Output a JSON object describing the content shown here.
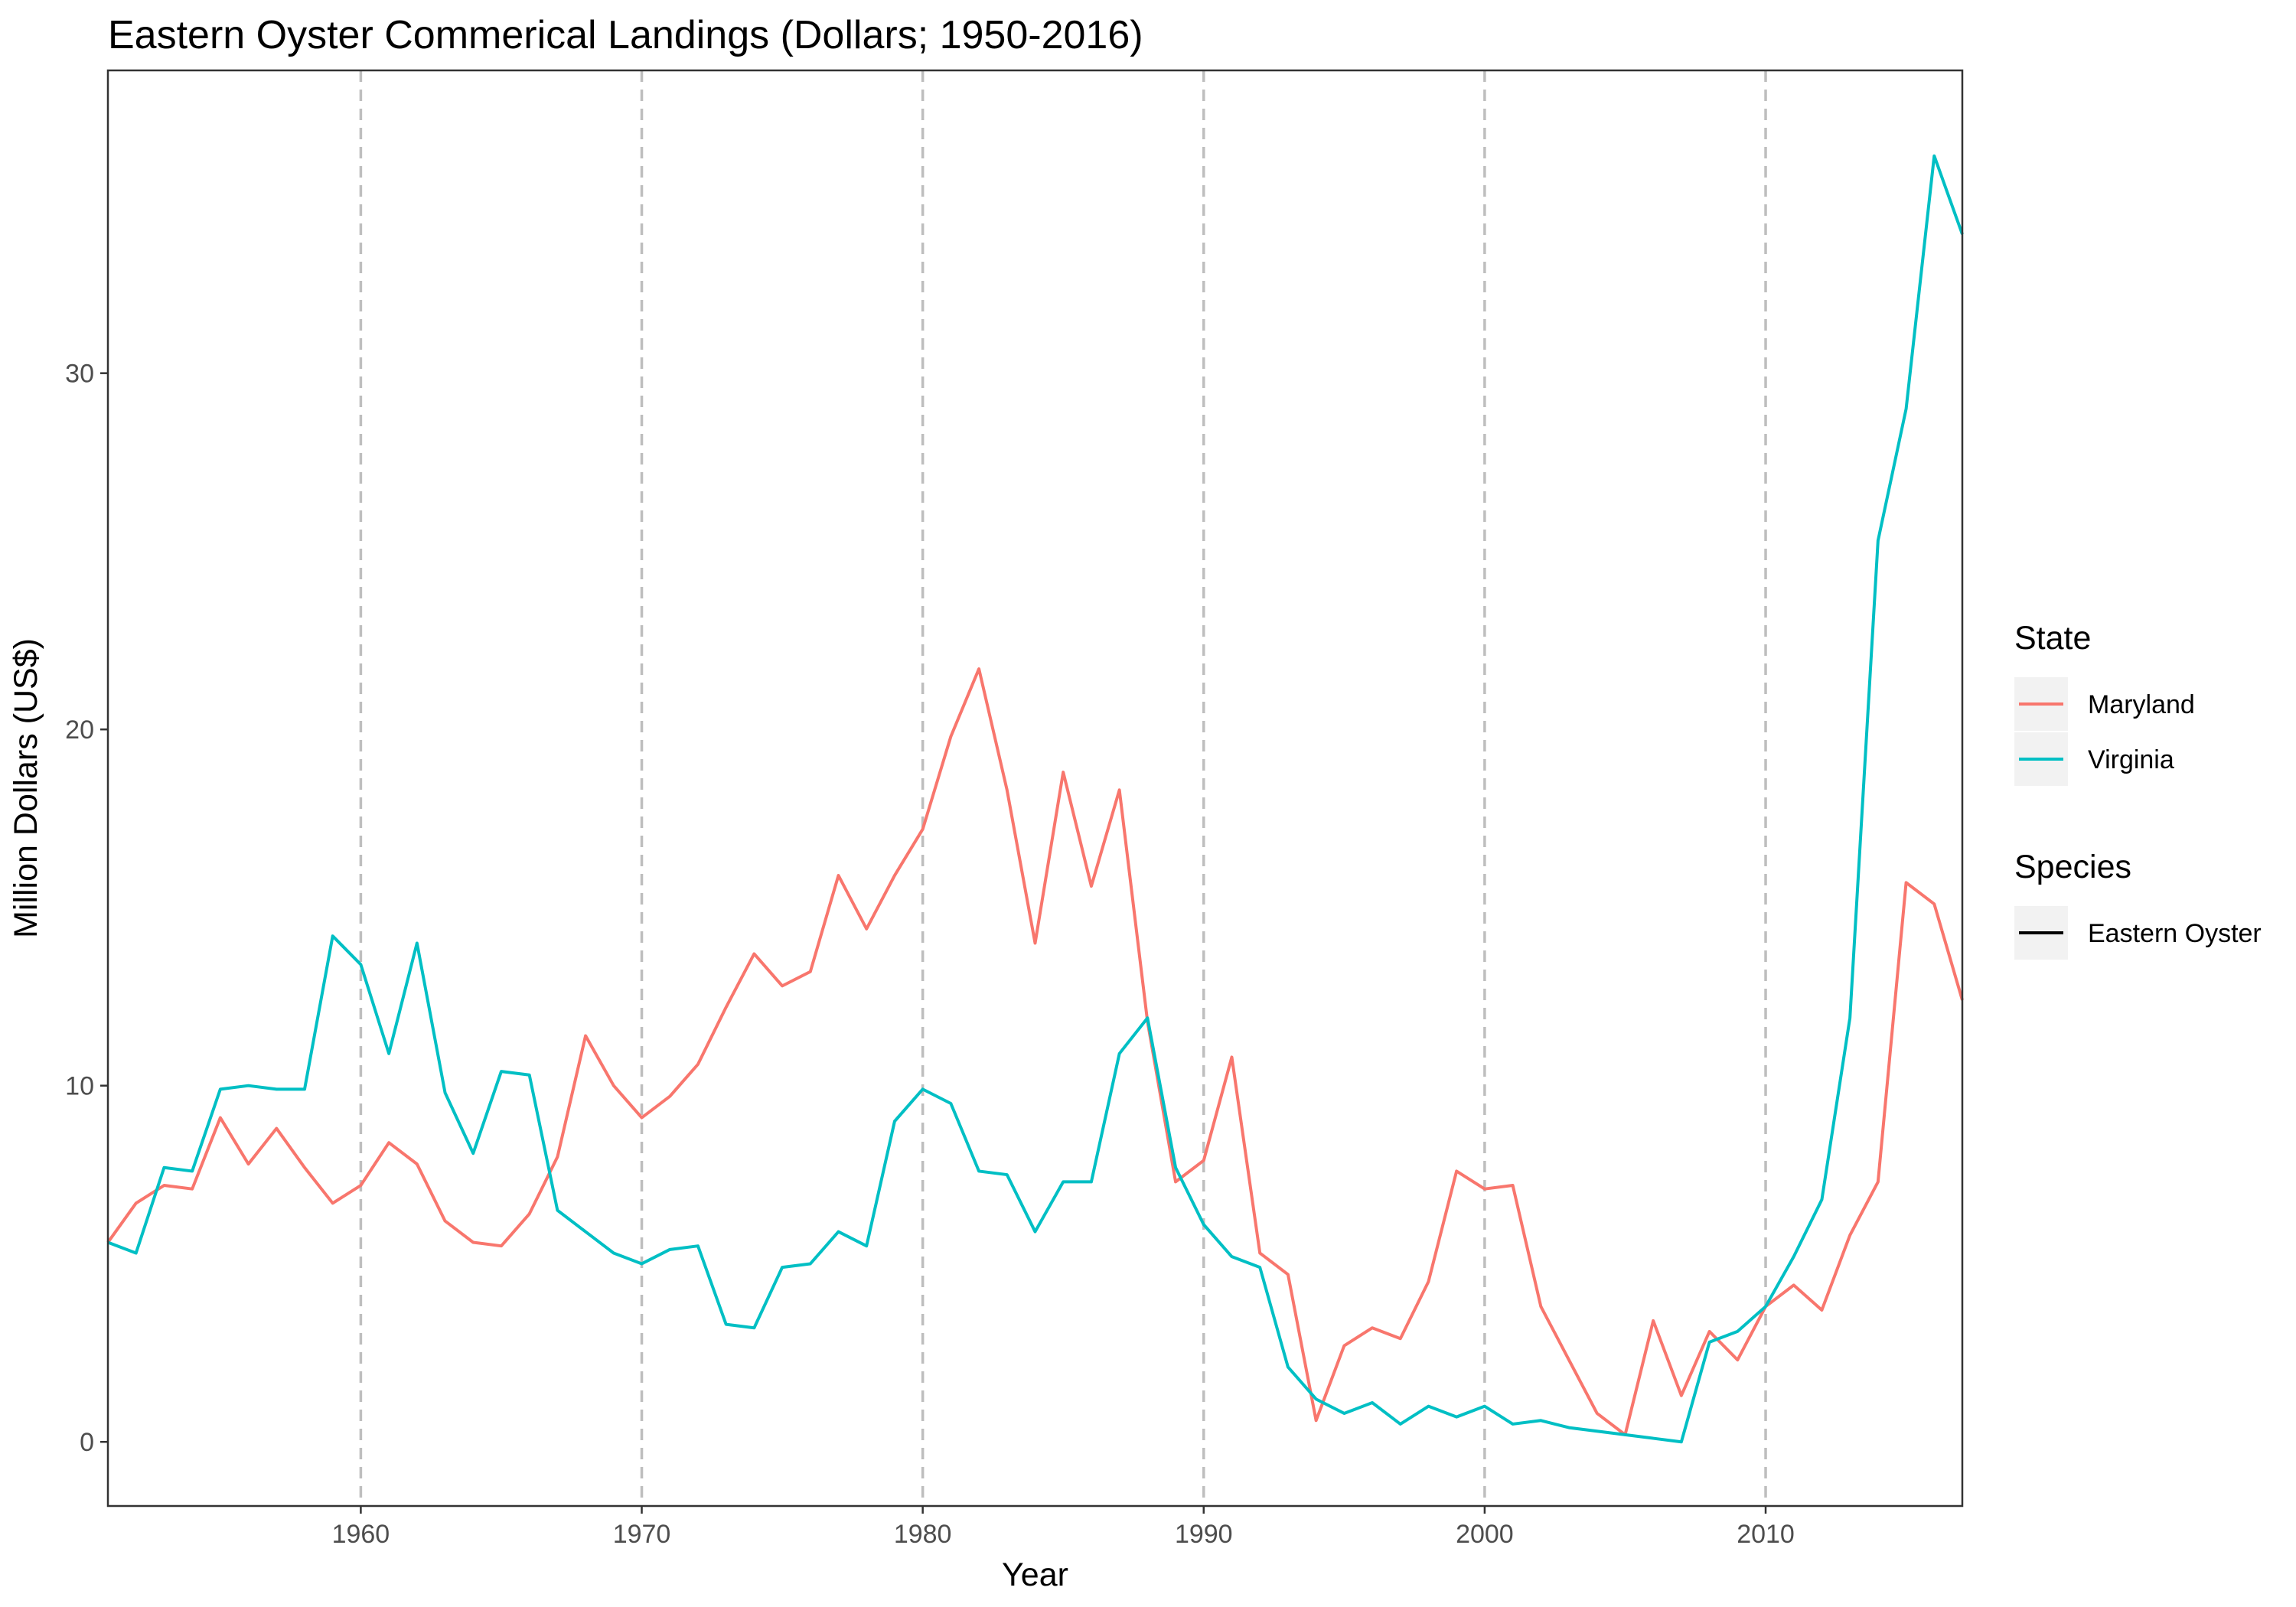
{
  "chart_data": {
    "type": "line",
    "title": "Eastern Oyster Commerical Landings (Dollars; 1950-2016)",
    "xlabel": "Year",
    "ylabel": "Million Dollars (US$)",
    "xlim": [
      1951,
      2017
    ],
    "ylim": [
      -1.8,
      38.5
    ],
    "x_ticks": [
      1960,
      1970,
      1980,
      1990,
      2000,
      2010
    ],
    "y_ticks": [
      0,
      10,
      20,
      30
    ],
    "x_gridlines": "dashed vertical at x ticks",
    "grid": false,
    "legend_position": "right",
    "legends": [
      {
        "title": "State",
        "entries": [
          {
            "label": "Maryland",
            "color": "#F8766D"
          },
          {
            "label": "Virginia",
            "color": "#00BFC4"
          }
        ]
      },
      {
        "title": "Species",
        "entries": [
          {
            "label": "Eastern Oyster",
            "color": "#000000"
          }
        ]
      }
    ],
    "x": [
      1951,
      1952,
      1953,
      1954,
      1955,
      1956,
      1957,
      1958,
      1959,
      1960,
      1961,
      1962,
      1963,
      1964,
      1965,
      1966,
      1967,
      1968,
      1969,
      1970,
      1971,
      1972,
      1973,
      1974,
      1975,
      1976,
      1977,
      1978,
      1979,
      1980,
      1981,
      1982,
      1983,
      1984,
      1985,
      1986,
      1987,
      1988,
      1989,
      1990,
      1991,
      1992,
      1993,
      1994,
      1995,
      1996,
      1997,
      1998,
      1999,
      2000,
      2001,
      2002,
      2003,
      2004,
      2005,
      2006,
      2007,
      2008,
      2009,
      2010,
      2011,
      2012,
      2013,
      2014,
      2015,
      2016,
      2017
    ],
    "series": [
      {
        "name": "Maryland",
        "color": "#F8766D",
        "values": [
          5.6,
          6.7,
          7.2,
          7.1,
          9.1,
          7.8,
          8.8,
          7.7,
          6.7,
          7.2,
          8.4,
          7.8,
          6.2,
          5.6,
          5.5,
          6.4,
          8.0,
          11.4,
          10.0,
          9.1,
          9.7,
          10.6,
          12.2,
          13.7,
          12.8,
          13.2,
          15.9,
          14.4,
          15.9,
          17.2,
          19.8,
          21.7,
          18.3,
          14.0,
          18.8,
          15.6,
          18.3,
          11.8,
          7.3,
          7.9,
          10.8,
          5.3,
          4.7,
          0.6,
          2.7,
          3.2,
          2.9,
          4.5,
          7.6,
          7.1,
          7.2,
          3.8,
          2.3,
          0.8,
          0.2,
          3.4,
          1.3,
          3.1,
          2.3,
          3.8,
          4.4,
          3.7,
          5.8,
          7.3,
          15.7,
          15.1,
          12.4
        ]
      },
      {
        "name": "Virginia",
        "color": "#00BFC4",
        "values": [
          5.6,
          5.3,
          7.7,
          7.6,
          9.9,
          10.0,
          9.9,
          9.9,
          14.2,
          13.4,
          10.9,
          14.0,
          9.8,
          8.1,
          10.4,
          10.3,
          6.5,
          5.9,
          5.3,
          5.0,
          5.4,
          5.5,
          3.3,
          3.2,
          4.9,
          5.0,
          5.9,
          5.5,
          9.0,
          9.9,
          9.5,
          7.6,
          7.5,
          5.9,
          7.3,
          7.3,
          10.9,
          11.9,
          7.7,
          6.1,
          5.2,
          4.9,
          2.1,
          1.2,
          0.8,
          1.1,
          0.5,
          1.0,
          0.7,
          1.0,
          0.5,
          0.6,
          0.4,
          0.3,
          0.2,
          0.1,
          0.0,
          2.8,
          3.1,
          3.8,
          5.2,
          6.8,
          11.9,
          25.3,
          29.0,
          36.1,
          33.9
        ]
      }
    ]
  }
}
